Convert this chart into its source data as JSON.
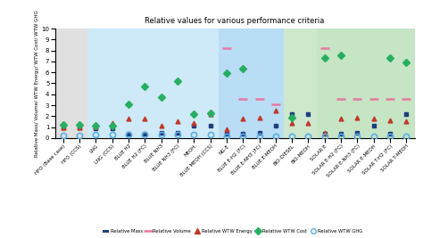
{
  "title": "Relative values for various performance criteria",
  "ylabel": "Relative Mass/ Volume/ WTW Energy/ WTW Cost/ WTW GHG",
  "ylim": [
    0,
    10
  ],
  "yticks": [
    0,
    1,
    2,
    3,
    4,
    5,
    6,
    7,
    8,
    9,
    10
  ],
  "categories": [
    "HFO (Base case)",
    "HFO (CCS)",
    "LNG",
    "LNG (CCS)",
    "BLUE H2",
    "BLUE H2 (FC)",
    "BLUE NH3",
    "BLUE NH3 (FC)",
    "MEOH",
    "BLUE MEOH (CCS)",
    "NG-E",
    "BLUE E-H2 (FC)",
    "BLUE E-NH3 (FC)",
    "BLUE E-MEOH",
    "BIO-DIESEL",
    "BIO-MEOH",
    "SOLAR E",
    "SOLAR E-H2 (FC)",
    "SOLAR E-NH3 (FC)",
    "SOLAR E-MEOH",
    "SOLAR T-H2 (FC)",
    "SOLAR T-MEOH"
  ],
  "relative_mass": [
    1.0,
    1.0,
    0.85,
    0.85,
    0.4,
    0.4,
    0.5,
    0.5,
    1.1,
    1.1,
    0.4,
    0.4,
    0.5,
    1.1,
    2.2,
    2.2,
    0.4,
    0.4,
    0.5,
    1.1,
    0.4,
    2.2
  ],
  "relative_volume": [
    null,
    null,
    null,
    null,
    null,
    null,
    null,
    null,
    null,
    null,
    8.2,
    3.6,
    3.6,
    3.1,
    null,
    null,
    8.2,
    3.6,
    3.6,
    3.6,
    3.6,
    3.6
  ],
  "relative_wtw_energy": [
    1.0,
    1.0,
    1.05,
    1.35,
    1.8,
    1.75,
    1.1,
    1.55,
    1.35,
    2.2,
    0.8,
    1.8,
    1.85,
    2.5,
    1.4,
    1.4,
    0.5,
    1.8,
    1.85,
    1.8,
    1.65,
    1.55
  ],
  "relative_wtw_cost": [
    1.2,
    1.2,
    1.1,
    1.1,
    3.05,
    4.7,
    3.7,
    5.2,
    2.2,
    2.3,
    5.9,
    6.35,
    null,
    null,
    1.9,
    null,
    7.3,
    7.55,
    null,
    null,
    7.3,
    6.9
  ],
  "relative_wtw_ghg": [
    0.2,
    0.2,
    0.3,
    0.3,
    0.3,
    0.3,
    0.3,
    0.3,
    0.3,
    0.3,
    0.15,
    0.15,
    0.15,
    0.15,
    0.15,
    0.15,
    0.15,
    0.15,
    0.15,
    0.15,
    0.15,
    0.15
  ],
  "mass_color": "#1f3e7c",
  "volume_color": "#e879a0",
  "energy_color": "#c0392b",
  "cost_color": "#27ae60",
  "ghg_color": "#5dade2",
  "bg_regions": [
    {
      "xstart": -0.5,
      "xend": 1.5,
      "color": "#e0e0e0"
    },
    {
      "xstart": 1.5,
      "xend": 9.5,
      "color": "#ceeaf8"
    },
    {
      "xstart": 9.5,
      "xend": 13.5,
      "color": "#b8ddf5"
    },
    {
      "xstart": 13.5,
      "xend": 15.5,
      "color": "#cde8cd"
    },
    {
      "xstart": 15.5,
      "xend": 21.5,
      "color": "#c5e5c5"
    }
  ]
}
